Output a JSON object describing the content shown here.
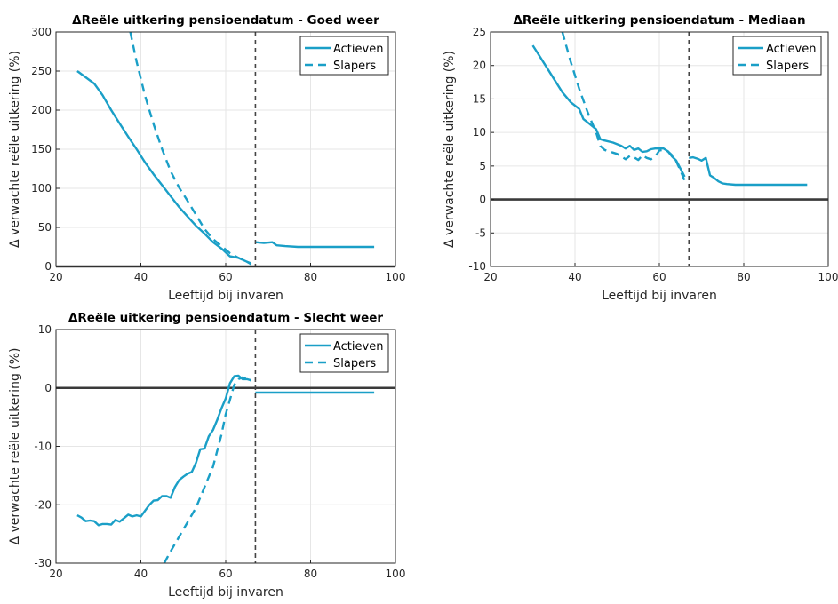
{
  "chart_data": [
    {
      "type": "line",
      "title": "ΔReële uitkering pensioendatum - Goed weer",
      "xlabel": "Leeftijd bij invaren",
      "ylabel": "Δ verwachte reële uitkering (%)",
      "xlim": [
        20,
        100
      ],
      "ylim": [
        0,
        300
      ],
      "xticks": [
        20,
        40,
        60,
        80,
        100
      ],
      "yticks": [
        0,
        50,
        100,
        150,
        200,
        250,
        300
      ],
      "grid": true,
      "legend_position": "top-right",
      "vline": 67,
      "hline": 0,
      "series": [
        {
          "name": "Actieven",
          "style": "solid",
          "segments": [
            {
              "x": [
                25,
                27,
                29,
                31,
                33,
                35,
                37,
                39,
                41,
                43,
                45,
                47,
                49,
                51,
                53,
                55,
                57,
                59,
                61,
                63,
                65,
                66
              ],
              "y": [
                250,
                242,
                234,
                219,
                200,
                183,
                166,
                150,
                133,
                118,
                104,
                90,
                76,
                64,
                52,
                42,
                31,
                23,
                13,
                11,
                6,
                4
              ]
            },
            {
              "x": [
                67,
                69,
                71,
                72,
                74,
                77,
                80,
                85,
                90,
                95
              ],
              "y": [
                31,
                30,
                31,
                27,
                26,
                25,
                25,
                25,
                25,
                25
              ]
            }
          ]
        },
        {
          "name": "Slapers",
          "style": "dashed",
          "segments": [
            {
              "x": [
                37.5,
                39,
                41,
                43,
                45,
                47,
                49,
                51,
                53,
                55,
                57,
                59,
                61,
                63,
                65,
                66
              ],
              "y": [
                300,
                262,
                218,
                182,
                150,
                122,
                101,
                84,
                66,
                48,
                35,
                26,
                17,
                11,
                6,
                3
              ]
            }
          ]
        }
      ]
    },
    {
      "type": "line",
      "title": "ΔReële uitkering pensioendatum - Mediaan",
      "xlabel": "Leeftijd bij invaren",
      "ylabel": "Δ verwachte reële uitkering (%)",
      "xlim": [
        20,
        100
      ],
      "ylim": [
        -10,
        25
      ],
      "xticks": [
        20,
        40,
        60,
        80,
        100
      ],
      "yticks": [
        -10,
        -5,
        0,
        5,
        10,
        15,
        20,
        25
      ],
      "grid": true,
      "legend_position": "top-right",
      "vline": 67,
      "hline": 0,
      "series": [
        {
          "name": "Actieven",
          "style": "solid",
          "segments": [
            {
              "x": [
                30,
                31,
                33,
                35,
                37,
                39,
                41,
                42,
                43,
                45,
                46,
                47,
                49,
                51,
                52,
                53,
                54,
                55,
                56,
                57,
                58,
                59,
                60,
                61,
                62,
                63,
                64,
                65,
                66
              ],
              "y": [
                23,
                22,
                20,
                18,
                16,
                14.5,
                13.5,
                12,
                11.5,
                10.5,
                9,
                8.8,
                8.5,
                8,
                7.6,
                8,
                7.4,
                7.6,
                7.1,
                7.2,
                7.5,
                7.6,
                7.6,
                7.6,
                7.2,
                6.4,
                5.8,
                4.6,
                3.4
              ]
            },
            {
              "x": [
                67,
                68,
                69,
                70,
                71,
                72,
                73,
                74,
                75,
                76,
                78,
                80,
                85,
                90,
                95
              ],
              "y": [
                6.2,
                6.3,
                6.1,
                5.8,
                6.2,
                3.6,
                3.2,
                2.7,
                2.4,
                2.3,
                2.2,
                2.2,
                2.2,
                2.2,
                2.2
              ]
            }
          ]
        },
        {
          "name": "Slapers",
          "style": "dashed",
          "segments": [
            {
              "x": [
                37,
                39,
                41,
                43,
                44,
                45,
                46,
                47,
                48,
                49,
                50,
                51,
                52,
                53,
                54,
                55,
                56,
                57,
                58,
                59,
                60,
                61,
                62,
                63,
                64,
                65,
                66
              ],
              "y": [
                25,
                20.5,
                16.5,
                13,
                11.5,
                10,
                8,
                7.4,
                7.2,
                7.0,
                6.8,
                6.4,
                6.0,
                6.5,
                6.3,
                5.9,
                6.6,
                6.2,
                6.0,
                6.4,
                7.3,
                7.4,
                7.2,
                6.6,
                5.7,
                4.3,
                2.8
              ]
            }
          ]
        }
      ]
    },
    {
      "type": "line",
      "title": "ΔReële uitkering pensioendatum - Slecht weer",
      "xlabel": "Leeftijd bij invaren",
      "ylabel": "Δ verwachte reële uitkering (%)",
      "xlim": [
        20,
        100
      ],
      "ylim": [
        -30,
        10
      ],
      "xticks": [
        20,
        40,
        60,
        80,
        100
      ],
      "yticks": [
        -30,
        -20,
        -10,
        0,
        10
      ],
      "grid": true,
      "legend_position": "top-right",
      "vline": 67,
      "hline": 0,
      "series": [
        {
          "name": "Actieven",
          "style": "solid",
          "segments": [
            {
              "x": [
                25,
                26,
                27,
                28,
                29,
                30,
                31,
                32,
                33,
                34,
                35,
                36,
                37,
                38,
                39,
                40,
                41,
                42,
                43,
                44,
                45,
                46,
                47,
                48,
                49,
                50,
                51,
                52,
                53,
                54,
                55,
                56,
                57,
                58,
                59,
                60,
                61,
                62,
                63,
                64,
                65,
                66
              ],
              "y": [
                -21.8,
                -22.2,
                -22.8,
                -22.7,
                -22.8,
                -23.5,
                -23.3,
                -23.3,
                -23.4,
                -22.6,
                -22.9,
                -22.3,
                -21.7,
                -22.0,
                -21.8,
                -22.0,
                -21.0,
                -20.0,
                -19.3,
                -19.2,
                -18.5,
                -18.5,
                -18.8,
                -17.0,
                -15.8,
                -15.2,
                -14.7,
                -14.4,
                -12.8,
                -10.5,
                -10.4,
                -8.3,
                -7.2,
                -5.5,
                -3.5,
                -1.8,
                0.8,
                2.0,
                2.1,
                1.5,
                1.5,
                1.3
              ]
            },
            {
              "x": [
                67,
                70,
                75,
                80,
                85,
                90,
                95
              ],
              "y": [
                -0.8,
                -0.8,
                -0.8,
                -0.8,
                -0.8,
                -0.8,
                -0.8
              ]
            }
          ]
        },
        {
          "name": "Slapers",
          "style": "dashed",
          "segments": [
            {
              "x": [
                45.5,
                47,
                49,
                51,
                53,
                55,
                57,
                59,
                60,
                61,
                62,
                63,
                64,
                65,
                66
              ],
              "y": [
                -30,
                -28,
                -25.5,
                -23,
                -20.5,
                -17,
                -13.5,
                -8,
                -4.5,
                -2,
                0.5,
                1.5,
                1.8,
                1.5,
                1.2
              ]
            }
          ]
        }
      ]
    }
  ]
}
